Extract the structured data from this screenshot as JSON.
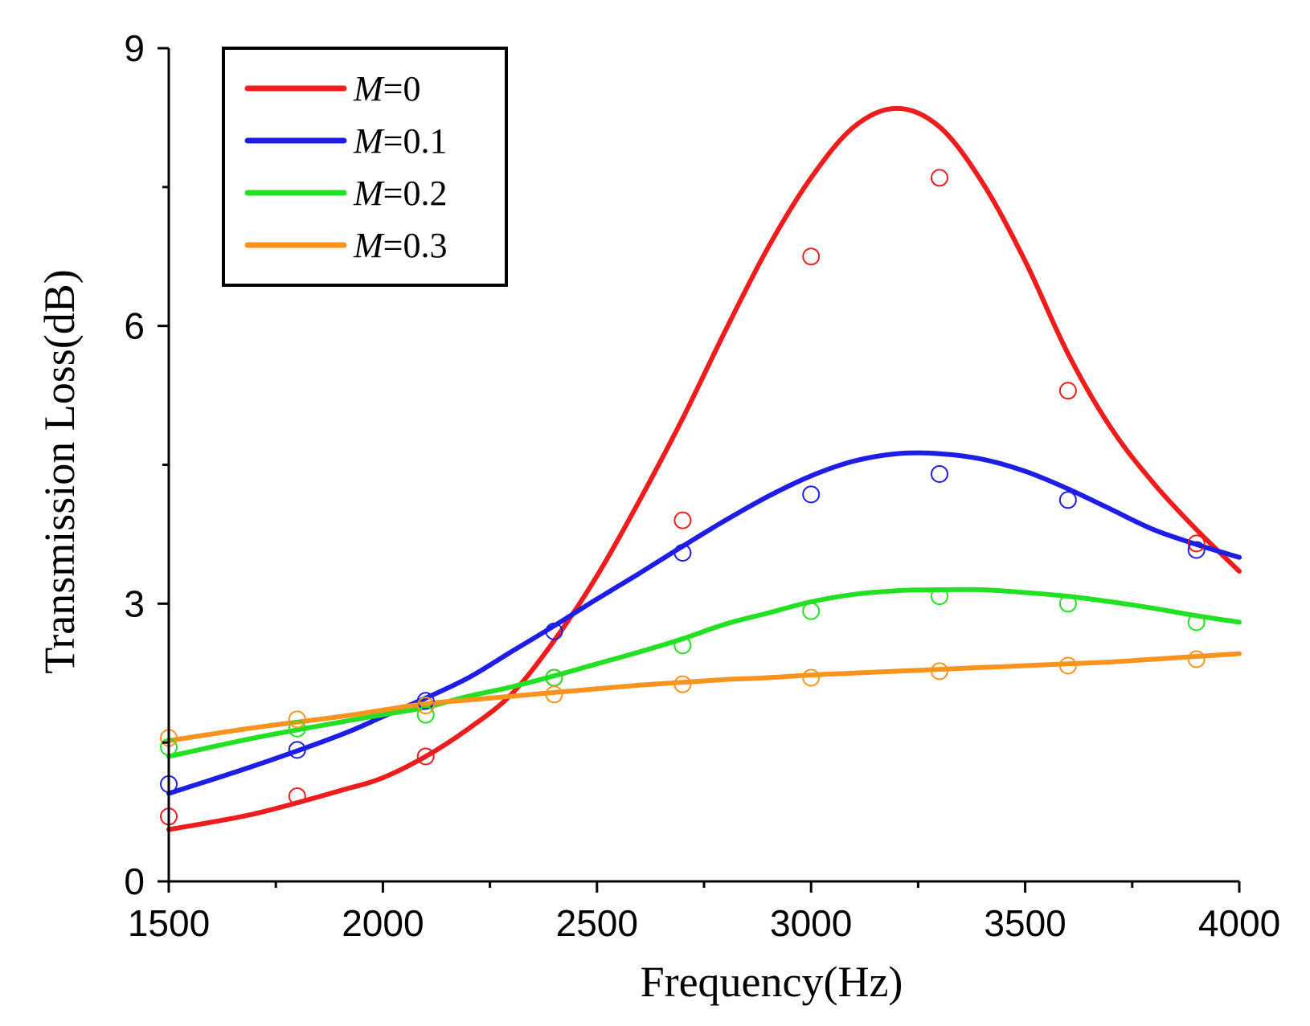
{
  "chart_data": {
    "type": "line",
    "title": "",
    "xlabel": "Frequency(Hz)",
    "ylabel": "Transmission Loss(dB)",
    "xlim": [
      1500,
      4000
    ],
    "ylim": [
      0,
      9
    ],
    "x_ticks": [
      1500,
      2000,
      2500,
      3000,
      3500,
      4000
    ],
    "x_tick_labels": [
      "1500",
      "2000",
      "2500",
      "3000",
      "3500",
      "4000"
    ],
    "y_ticks": [
      0,
      3,
      6,
      9
    ],
    "y_tick_labels": [
      "0",
      "3",
      "6",
      "9"
    ],
    "grid": false,
    "legend_position": "top-left",
    "series": [
      {
        "name": "M=0",
        "legend_var": "M",
        "legend_rest": "=0",
        "color": "#ee1c1c",
        "curve_x": [
          1500,
          1700,
          1900,
          2000,
          2100,
          2200,
          2300,
          2400,
          2500,
          2600,
          2700,
          2800,
          2900,
          3000,
          3100,
          3200,
          3300,
          3400,
          3500,
          3600,
          3700,
          3800,
          3900,
          4000
        ],
        "curve_y": [
          0.56,
          0.73,
          0.98,
          1.12,
          1.35,
          1.65,
          2.02,
          2.6,
          3.3,
          4.12,
          5.0,
          5.95,
          6.85,
          7.6,
          8.15,
          8.35,
          8.15,
          7.55,
          6.7,
          5.7,
          4.9,
          4.3,
          3.8,
          3.35
        ],
        "markers_x": [
          1500,
          1800,
          2100,
          2400,
          2700,
          3000,
          3300,
          3600,
          3900
        ],
        "markers_y": [
          0.7,
          0.92,
          1.35,
          2.2,
          3.9,
          6.75,
          7.6,
          5.3,
          3.65
        ]
      },
      {
        "name": "M=0.1",
        "legend_var": "M",
        "legend_rest": "=0.1",
        "color": "#1d1de6",
        "curve_x": [
          1500,
          1700,
          1900,
          2000,
          2100,
          2200,
          2300,
          2400,
          2500,
          2600,
          2700,
          2800,
          2900,
          3000,
          3100,
          3200,
          3300,
          3400,
          3500,
          3600,
          3700,
          3800,
          3900,
          4000
        ],
        "curve_y": [
          0.95,
          1.25,
          1.58,
          1.78,
          1.98,
          2.2,
          2.48,
          2.76,
          3.05,
          3.33,
          3.62,
          3.9,
          4.16,
          4.38,
          4.54,
          4.62,
          4.62,
          4.56,
          4.43,
          4.24,
          4.02,
          3.8,
          3.64,
          3.5
        ],
        "markers_x": [
          1500,
          1800,
          2100,
          2400,
          2700,
          3000,
          3300,
          3600,
          3900
        ],
        "markers_y": [
          1.05,
          1.42,
          1.95,
          2.7,
          3.55,
          4.18,
          4.4,
          4.12,
          3.58
        ]
      },
      {
        "name": "M=0.2",
        "legend_var": "M",
        "legend_rest": "=0.2",
        "color": "#22e022",
        "curve_x": [
          1500,
          1700,
          1900,
          2000,
          2100,
          2200,
          2300,
          2400,
          2500,
          2600,
          2700,
          2800,
          2900,
          3000,
          3100,
          3200,
          3300,
          3400,
          3500,
          3600,
          3700,
          3800,
          3900,
          4000
        ],
        "curve_y": [
          1.35,
          1.55,
          1.72,
          1.8,
          1.88,
          2.0,
          2.1,
          2.22,
          2.35,
          2.48,
          2.62,
          2.78,
          2.9,
          3.02,
          3.1,
          3.14,
          3.15,
          3.15,
          3.12,
          3.08,
          3.02,
          2.95,
          2.87,
          2.8
        ],
        "markers_x": [
          1500,
          1800,
          2100,
          2400,
          2700,
          3000,
          3300,
          3600,
          3900
        ],
        "markers_y": [
          1.45,
          1.65,
          1.8,
          2.2,
          2.55,
          2.92,
          3.08,
          3.0,
          2.8
        ]
      },
      {
        "name": "M=0.3",
        "legend_var": "M",
        "legend_rest": "=0.3",
        "color": "#f7931e",
        "curve_x": [
          1500,
          1700,
          1900,
          2000,
          2100,
          2200,
          2300,
          2400,
          2500,
          2600,
          2700,
          2800,
          2900,
          3000,
          3100,
          3200,
          3300,
          3400,
          3500,
          3600,
          3700,
          3800,
          3900,
          4000
        ],
        "curve_y": [
          1.52,
          1.66,
          1.78,
          1.85,
          1.92,
          1.96,
          2.0,
          2.04,
          2.08,
          2.12,
          2.15,
          2.18,
          2.2,
          2.23,
          2.25,
          2.27,
          2.29,
          2.31,
          2.33,
          2.35,
          2.37,
          2.4,
          2.43,
          2.46
        ],
        "markers_x": [
          1500,
          1800,
          2100,
          2400,
          2700,
          3000,
          3300,
          3600,
          3900
        ],
        "markers_y": [
          1.55,
          1.75,
          1.9,
          2.02,
          2.13,
          2.2,
          2.27,
          2.33,
          2.4
        ]
      }
    ]
  }
}
